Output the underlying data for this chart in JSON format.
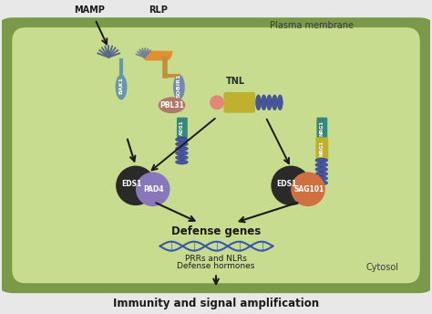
{
  "bg_color": "#e8e8e8",
  "cell_outer_color": "#7a9a4a",
  "cell_inner_color": "#c8dc90",
  "title_bottom": "Immunity and signal amplification",
  "label_plasma": "Plasma membrane",
  "label_cytosol": "Cytosol",
  "label_mamp": "MAMP",
  "label_rlp": "RLP",
  "label_tnl": "TNL",
  "label_bak1": "BAK1",
  "label_sobir1": "SOBIR1",
  "label_pbl31": "PBL31",
  "label_ads1": "ADS1",
  "label_eds1_left": "EDS1",
  "label_pad4": "PAD4",
  "label_eds1_right": "EDS1",
  "label_sag101": "SAG101",
  "label_nrg1": "NRG1",
  "label_defense_genes": "Defense genes",
  "label_prr_nlr": "PRRs and NLRs",
  "label_defense_hormones": "Defense hormones",
  "eds1_color": "#2a2a2a",
  "pad4_color": "#8878bb",
  "sag101_color": "#d07040",
  "pbl31_color": "#b07868",
  "bak1_color": "#6898a8",
  "sobir1_color": "#7888aa",
  "ads1_color": "#38887a",
  "nrg1_color": "#38887a",
  "tnl_salmon_color": "#e08878",
  "tnl_yellow_color": "#c0b030",
  "tnl_blue_color": "#3848a0",
  "rlp_orange_color": "#e09030",
  "rlp_stem_color": "#c09040",
  "mamp_blue_color": "#5a6888",
  "arrow_color": "#1a1a1a",
  "dna_color": "#3858a8",
  "ribosome_color": "#3848a0"
}
